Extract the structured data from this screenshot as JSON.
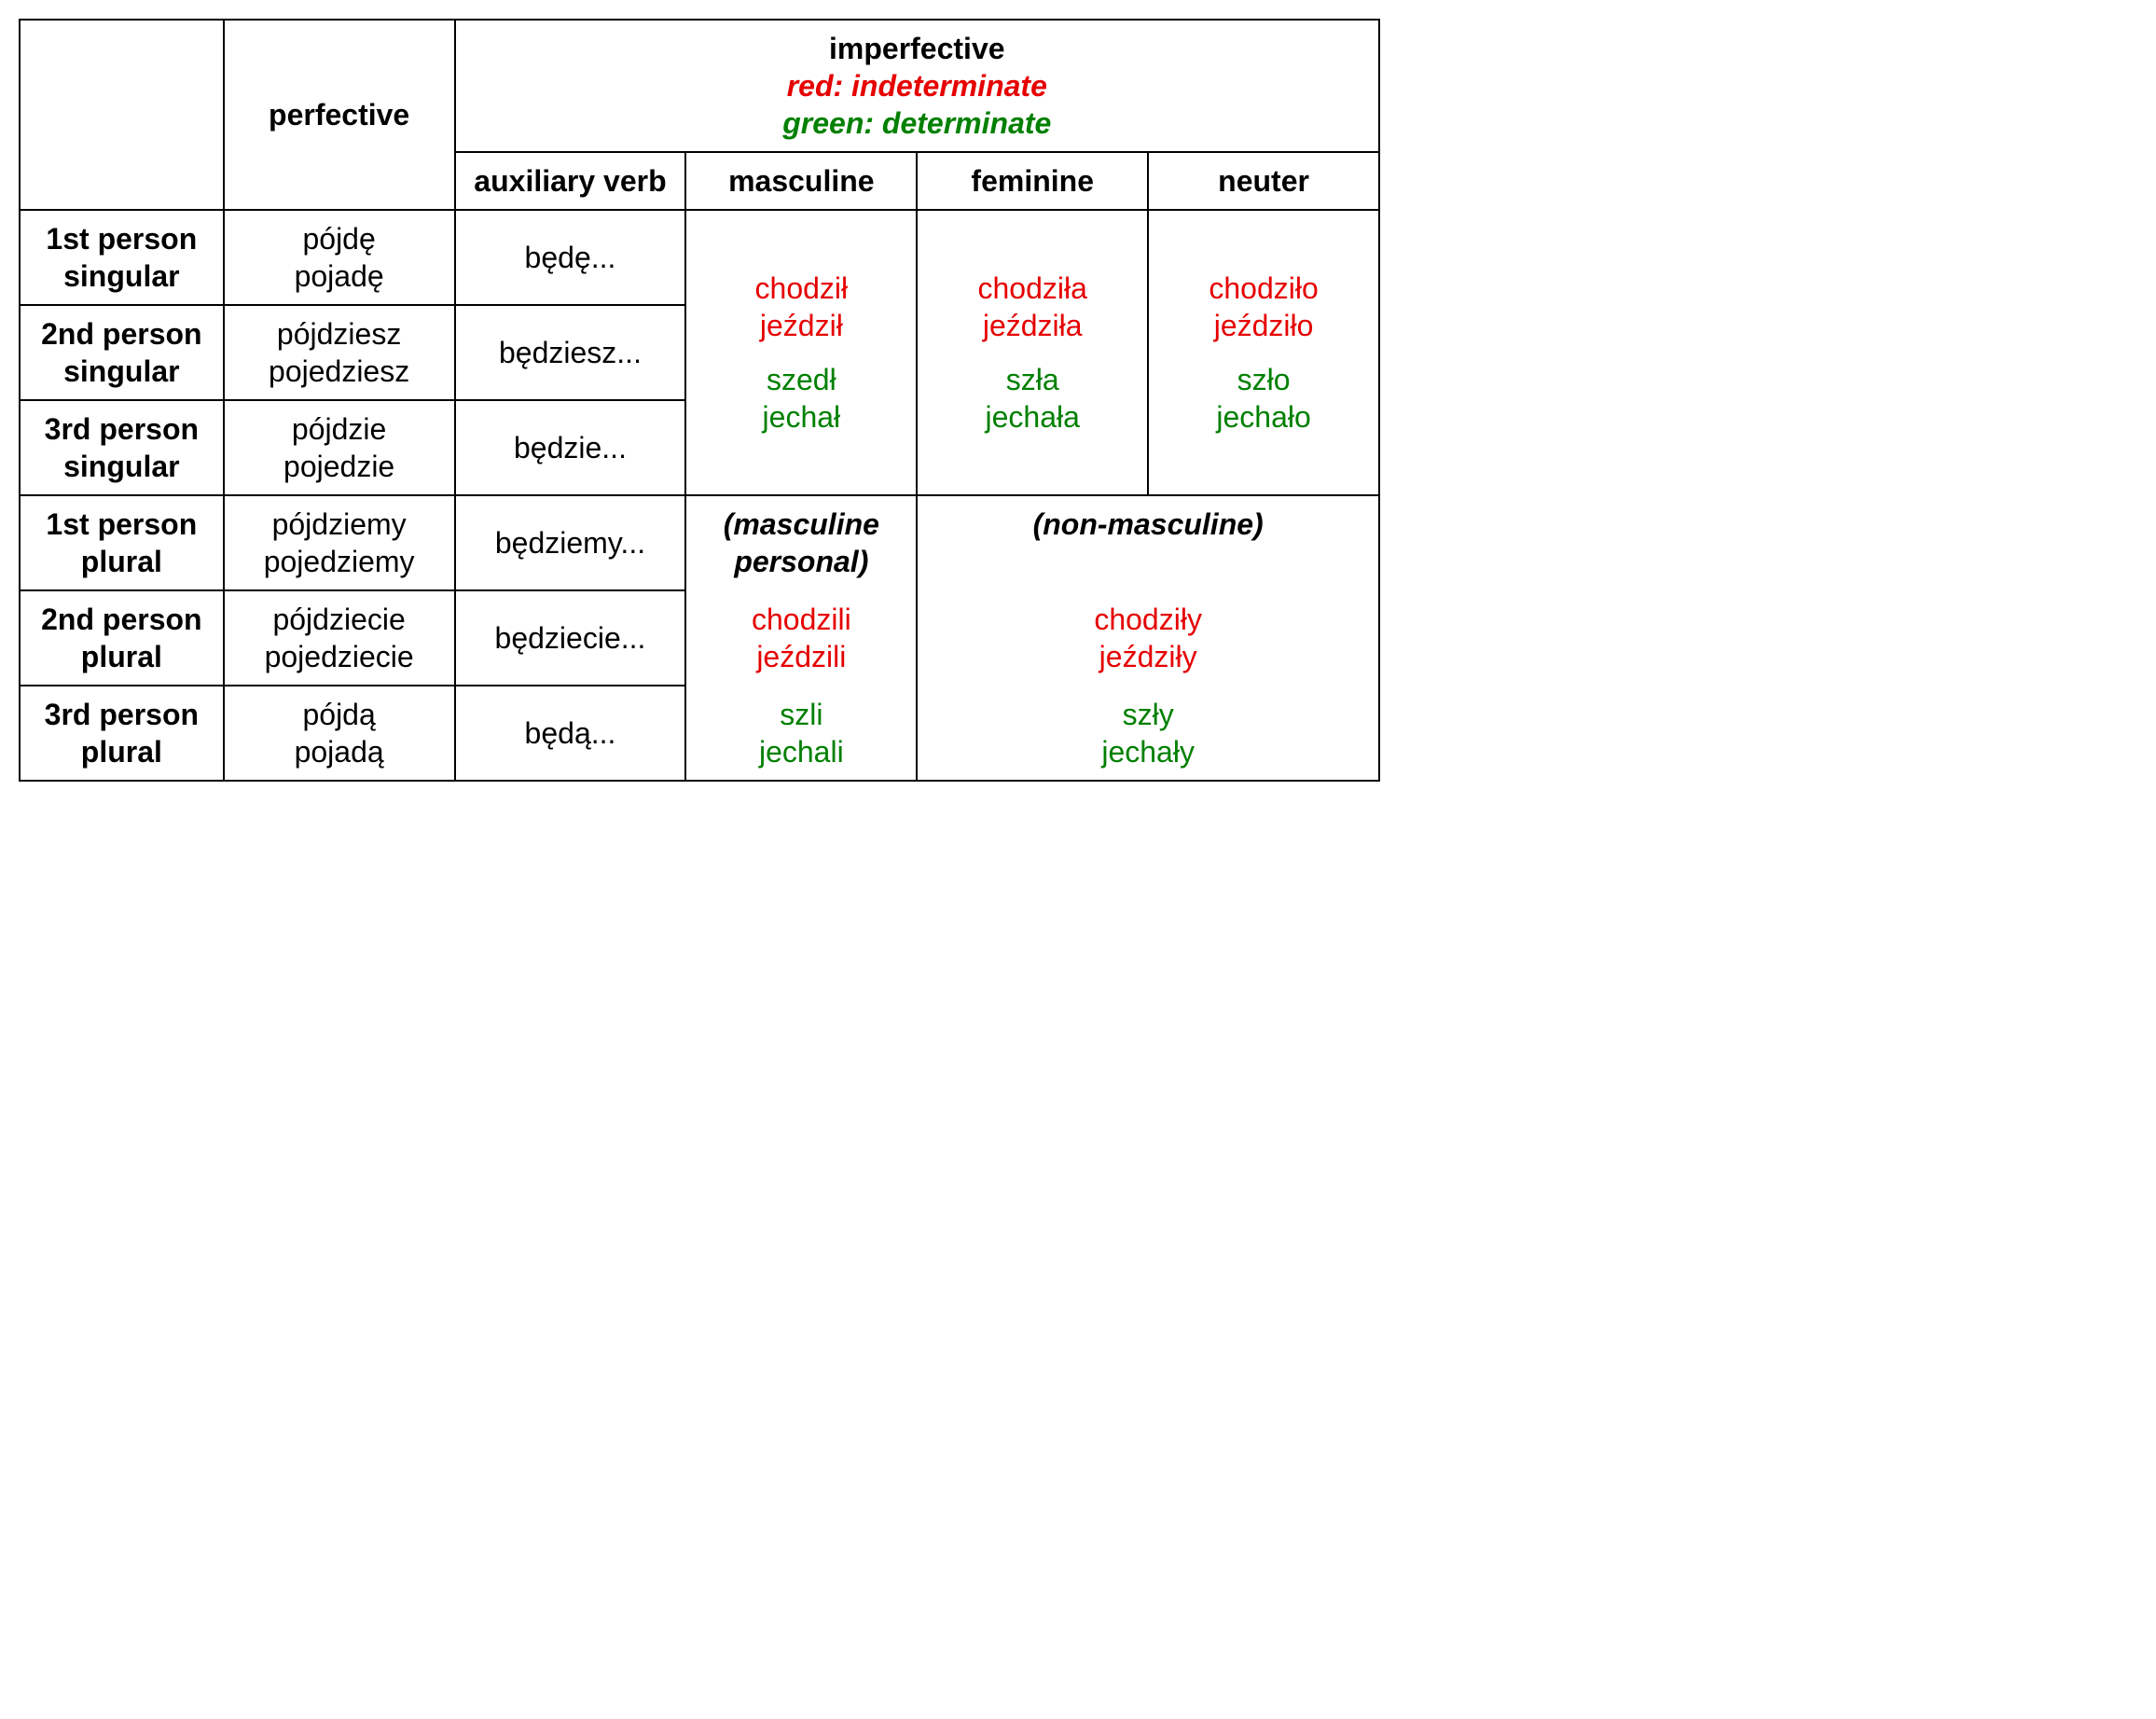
{
  "colors": {
    "indeterminate": "#e60000",
    "determinate": "#008000",
    "border": "#000000",
    "background": "#ffffff",
    "text": "#000000"
  },
  "typography": {
    "font_family": "Arial",
    "base_fontsize_pt": 24,
    "header_weight": "bold"
  },
  "header": {
    "perfective": "perfective",
    "imperfective": "imperfective",
    "legend_red": "red: indeterminate",
    "legend_green": "green: determinate",
    "aux": "auxiliary verb",
    "masculine": "masculine",
    "feminine": "feminine",
    "neuter": "neuter"
  },
  "rows": {
    "p1s": {
      "label_l1": "1st person",
      "label_l2": "singular",
      "perf_l1": "pójdę",
      "perf_l2": "pojadę",
      "aux": "będę..."
    },
    "p2s": {
      "label_l1": "2nd person",
      "label_l2": "singular",
      "perf_l1": "pójdziesz",
      "perf_l2": "pojedziesz",
      "aux": "będziesz..."
    },
    "p3s": {
      "label_l1": "3rd person",
      "label_l2": "singular",
      "perf_l1": "pójdzie",
      "perf_l2": "pojedzie",
      "aux": "będzie..."
    },
    "p1p": {
      "label_l1": "1st person",
      "label_l2": "plural",
      "perf_l1": "pójdziemy",
      "perf_l2": "pojedziemy",
      "aux": "będziemy..."
    },
    "p2p": {
      "label_l1": "2nd person",
      "label_l2": "plural",
      "perf_l1": "pójdziecie",
      "perf_l2": "pojedziecie",
      "aux": "będziecie..."
    },
    "p3p": {
      "label_l1": "3rd person",
      "label_l2": "plural",
      "perf_l1": "pójdą",
      "perf_l2": "pojadą",
      "aux": "będą..."
    }
  },
  "singular_forms": {
    "masculine": {
      "ind1": "chodził",
      "ind2": "jeździł",
      "det1": "szedł",
      "det2": "jechał"
    },
    "feminine": {
      "ind1": "chodziła",
      "ind2": "jeździła",
      "det1": "szła",
      "det2": "jechała"
    },
    "neuter": {
      "ind1": "chodziło",
      "ind2": "jeździło",
      "det1": "szło",
      "det2": "jechało"
    }
  },
  "plural": {
    "masc_personal_label": "(masculine personal)",
    "non_masc_label": "(non-masculine)",
    "masc_personal": {
      "ind1": "chodzili",
      "ind2": "jeździli",
      "det1": "szli",
      "det2": "jechali"
    },
    "non_masc": {
      "ind1": "chodziły",
      "ind2": "jeździły",
      "det1": "szły",
      "det2": "jechały"
    }
  }
}
